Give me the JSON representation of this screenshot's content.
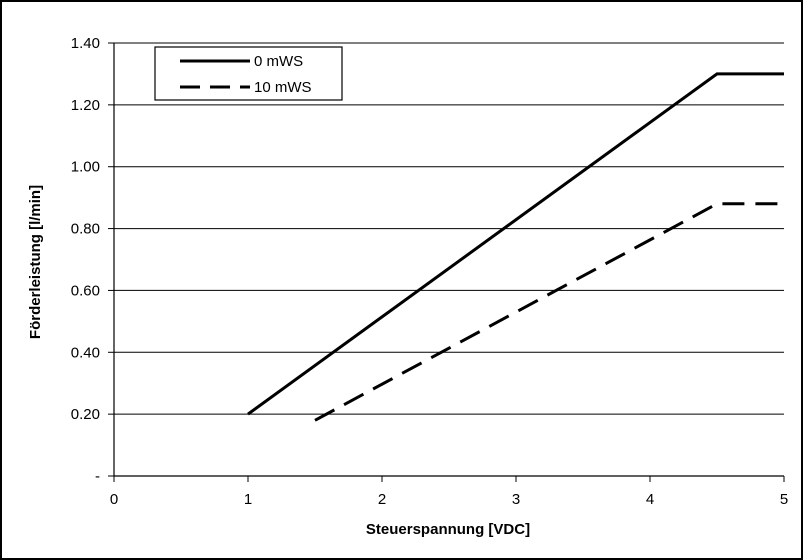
{
  "chart_data": {
    "type": "line",
    "xlabel": "Steuerspannung [VDC]",
    "ylabel": "Förderleistung [l/min]",
    "xlim": [
      0,
      5
    ],
    "ylim": [
      0,
      1.4
    ],
    "x_ticks": [
      "0",
      "1",
      "2",
      "3",
      "4",
      "5"
    ],
    "y_ticks": [
      "-",
      "0.20",
      "0.40",
      "0.60",
      "0.80",
      "1.00",
      "1.20",
      "1.40"
    ],
    "grid": "horizontal",
    "legend_position": "top-left",
    "series": [
      {
        "name": "0 mWS",
        "style": "solid",
        "x": [
          1,
          4.5,
          5
        ],
        "y": [
          0.2,
          1.3,
          1.3
        ]
      },
      {
        "name": "10 mWS",
        "style": "dashed",
        "x": [
          1.5,
          4.5,
          5
        ],
        "y": [
          0.18,
          0.88,
          0.88
        ]
      }
    ]
  }
}
